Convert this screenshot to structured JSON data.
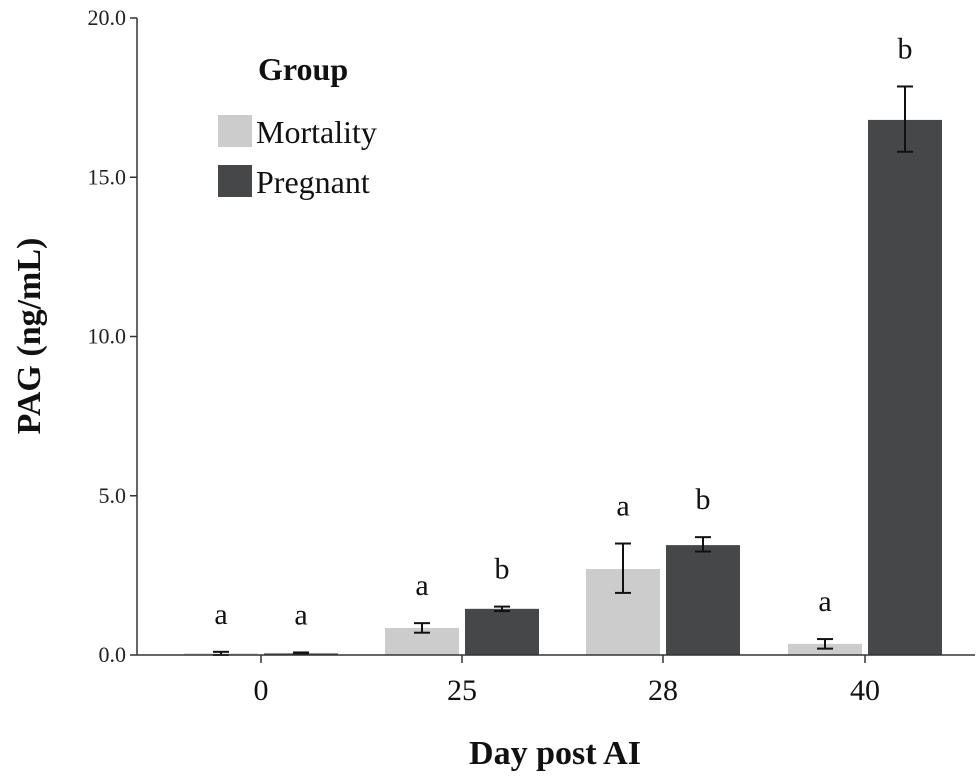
{
  "chart_data": {
    "type": "bar",
    "title": "",
    "xlabel": "Day post AI",
    "ylabel": "PAG (ng/mL)",
    "ylim": [
      0,
      20
    ],
    "yticks": [
      "0.0",
      "5.0",
      "10.0",
      "15.0",
      "20.0"
    ],
    "categories": [
      "0",
      "25",
      "28",
      "40"
    ],
    "legend": {
      "title": "Group",
      "position": "top-left"
    },
    "grid": false,
    "series": [
      {
        "name": "Mortality",
        "color": "#cccccc",
        "values": [
          0.05,
          0.85,
          2.7,
          0.35
        ],
        "error_low": [
          0.0,
          0.7,
          1.95,
          0.2
        ],
        "error_high": [
          0.1,
          1.0,
          3.5,
          0.5
        ],
        "sig_labels": [
          "a",
          "a",
          "a",
          "a"
        ]
      },
      {
        "name": "Pregnant",
        "color": "#464749",
        "values": [
          0.05,
          1.45,
          3.45,
          16.8
        ],
        "error_low": [
          0.02,
          1.38,
          3.25,
          15.8
        ],
        "error_high": [
          0.08,
          1.52,
          3.7,
          17.85
        ],
        "sig_labels": [
          "a",
          "b",
          "b",
          "b"
        ]
      }
    ]
  }
}
